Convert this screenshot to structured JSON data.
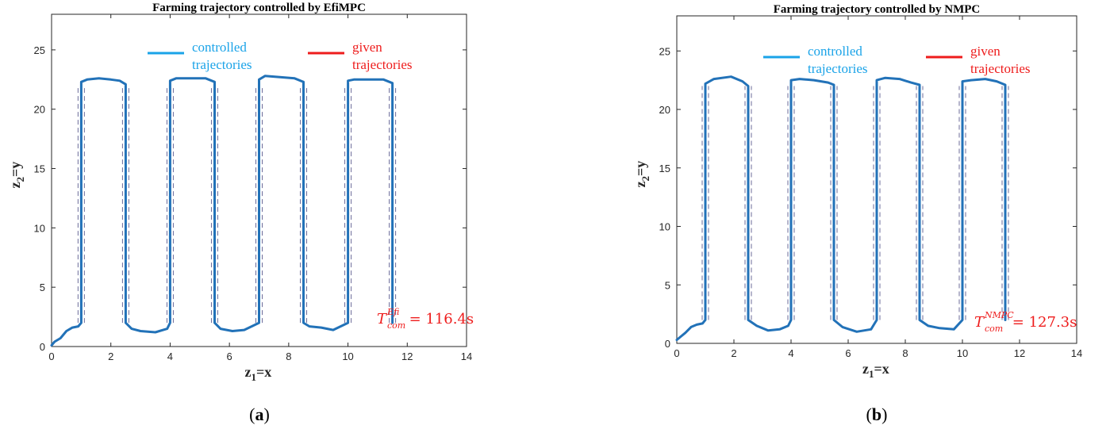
{
  "chart_data": [
    {
      "type": "line",
      "title": "Farming trajectory controlled by EfiMPC",
      "xlabel": "z",
      "xlabel_sub": "1",
      "xlabel_suffix": "=x",
      "ylabel": "z",
      "ylabel_sub": "2",
      "ylabel_suffix": "=y",
      "xlim": [
        0,
        14
      ],
      "ylim": [
        0,
        28
      ],
      "xticks": [
        0,
        2,
        4,
        6,
        8,
        10,
        12,
        14
      ],
      "yticks": [
        0,
        5,
        10,
        15,
        20,
        25
      ],
      "grid": false,
      "legend": {
        "placement": "top",
        "entries": [
          {
            "line1": "controlled",
            "line2": "trajectories",
            "color": "#1aa3e8"
          },
          {
            "line1": "given",
            "line2": "trajectories",
            "color": "#ee1c1c"
          }
        ]
      },
      "given_x": [
        1.0,
        2.5,
        4.0,
        5.5,
        7.0,
        8.5,
        10.0,
        11.5
      ],
      "given_y": [
        2,
        22
      ],
      "series": [
        {
          "color": "#2272b8",
          "x": [
            0,
            0.1,
            0.3,
            0.5,
            0.7,
            0.9,
            1.0,
            1.0,
            1.2,
            1.6,
            2.0,
            2.3,
            2.5,
            2.5,
            2.7,
            3.0,
            3.5,
            3.9,
            4.0,
            4.0,
            4.2,
            4.7,
            5.2,
            5.5,
            5.5,
            5.7,
            6.1,
            6.5,
            7.0,
            7.0,
            7.2,
            7.7,
            8.2,
            8.5,
            8.5,
            8.7,
            9.1,
            9.5,
            10.0,
            10.0,
            10.2,
            10.7,
            11.2,
            11.5,
            11.5
          ],
          "y": [
            0.1,
            0.4,
            0.7,
            1.3,
            1.6,
            1.7,
            2,
            22.3,
            22.5,
            22.6,
            22.5,
            22.4,
            22.1,
            2,
            1.5,
            1.3,
            1.2,
            1.5,
            2,
            22.4,
            22.6,
            22.6,
            22.6,
            22.3,
            2,
            1.5,
            1.3,
            1.4,
            2,
            22.5,
            22.8,
            22.7,
            22.6,
            22.3,
            2,
            1.7,
            1.6,
            1.4,
            2,
            22.4,
            22.5,
            22.5,
            22.5,
            22.2,
            2
          ]
        }
      ],
      "annotation": {
        "T": "T",
        "sup": "Efi",
        "sub": "com",
        "eq": "= 116.4s"
      },
      "caption": "a"
    },
    {
      "type": "line",
      "title": "Farming trajectory controlled by NMPC",
      "xlabel": "z",
      "xlabel_sub": "1",
      "xlabel_suffix": "=x",
      "ylabel": "z",
      "ylabel_sub": "2",
      "ylabel_suffix": "=y",
      "xlim": [
        0,
        14
      ],
      "ylim": [
        0,
        28
      ],
      "xticks": [
        0,
        2,
        4,
        6,
        8,
        10,
        12,
        14
      ],
      "yticks": [
        0,
        5,
        10,
        15,
        20,
        25
      ],
      "grid": false,
      "legend": {
        "placement": "top",
        "entries": [
          {
            "line1": "controlled",
            "line2": "trajectories",
            "color": "#1aa3e8"
          },
          {
            "line1": "given",
            "line2": "trajectories",
            "color": "#ee1c1c"
          }
        ]
      },
      "given_x": [
        1.0,
        2.5,
        4.0,
        5.5,
        7.0,
        8.5,
        10.0,
        11.5
      ],
      "given_y": [
        2,
        22
      ],
      "series": [
        {
          "color": "#2272b8",
          "x": [
            0,
            0.1,
            0.3,
            0.5,
            0.7,
            0.9,
            1.0,
            1.0,
            1.3,
            1.9,
            2.3,
            2.5,
            2.5,
            2.8,
            3.2,
            3.6,
            3.9,
            4.0,
            4.0,
            4.3,
            4.8,
            5.3,
            5.5,
            5.5,
            5.8,
            6.3,
            6.8,
            7.0,
            7.0,
            7.3,
            7.8,
            8.2,
            8.5,
            8.5,
            8.8,
            9.2,
            9.7,
            10.0,
            10.0,
            10.3,
            10.8,
            11.2,
            11.5,
            11.5
          ],
          "y": [
            0.3,
            0.5,
            0.9,
            1.4,
            1.6,
            1.7,
            2,
            22.2,
            22.6,
            22.8,
            22.4,
            22.0,
            2,
            1.5,
            1.1,
            1.2,
            1.5,
            2,
            22.5,
            22.6,
            22.5,
            22.3,
            22.1,
            2,
            1.4,
            1.0,
            1.2,
            2,
            22.5,
            22.7,
            22.6,
            22.3,
            22.1,
            2,
            1.5,
            1.3,
            1.2,
            2,
            22.4,
            22.5,
            22.6,
            22.4,
            22.1,
            2
          ]
        }
      ],
      "annotation": {
        "T": "T",
        "sup": "NMPC",
        "sub": "com",
        "eq": "= 127.3s"
      },
      "caption": "b"
    }
  ]
}
